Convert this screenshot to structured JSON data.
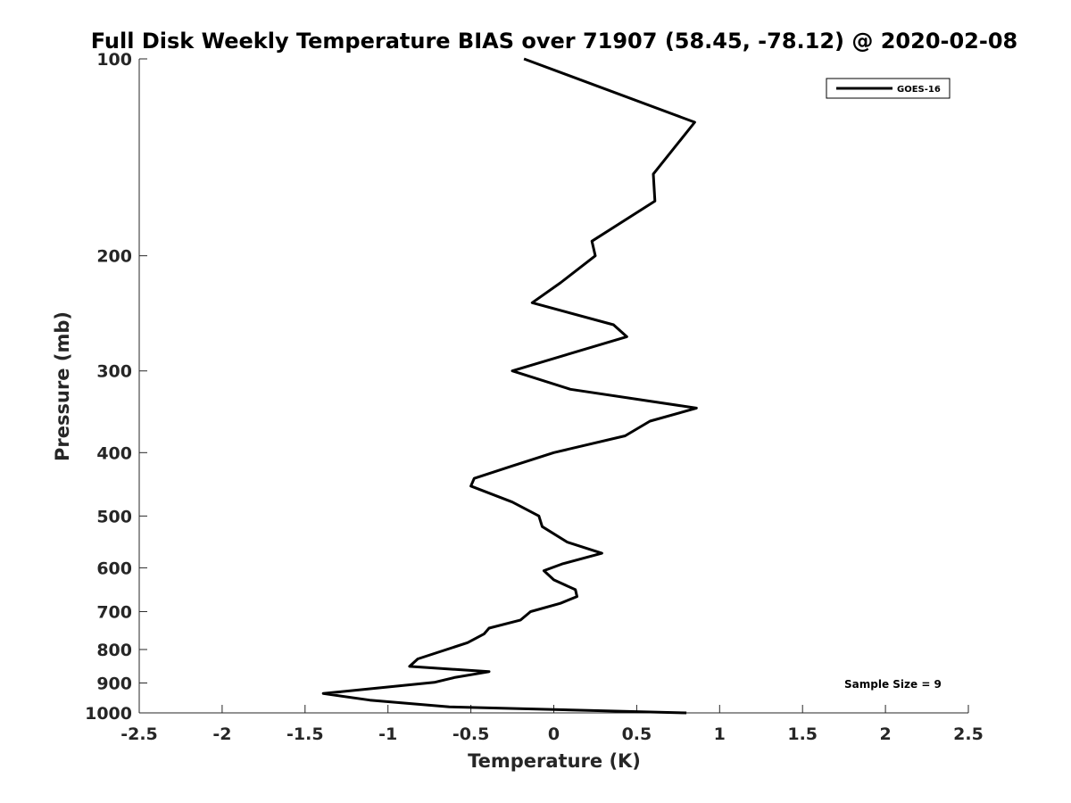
{
  "chart_data": {
    "type": "line",
    "title": "Full Disk Weekly Temperature BIAS over 71907 (58.45, -78.12) @ 2020-02-08",
    "xlabel": "Temperature (K)",
    "ylabel": "Pressure (mb)",
    "xlim": [
      -2.5,
      2.5
    ],
    "ylim": [
      100,
      1000
    ],
    "yscale": "log",
    "yreversed": true,
    "x_ticks": [
      "-2.5",
      "-2",
      "-1.5",
      "-1",
      "-0.5",
      "0",
      "0.5",
      "1",
      "1.5",
      "2",
      "2.5"
    ],
    "y_ticks": [
      "100",
      "200",
      "300",
      "400",
      "500",
      "600",
      "700",
      "800",
      "900",
      "1000"
    ],
    "grid": false,
    "legend": {
      "position": "top-right",
      "entries": [
        "GOES-16"
      ]
    },
    "annotation": "Sample Size = 9",
    "series": [
      {
        "name": "GOES-16",
        "color": "#000000",
        "points": [
          [
            -0.18,
            100
          ],
          [
            0.85,
            125
          ],
          [
            0.6,
            150
          ],
          [
            0.61,
            165
          ],
          [
            0.23,
            190
          ],
          [
            0.25,
            200
          ],
          [
            0.04,
            220
          ],
          [
            -0.13,
            236
          ],
          [
            0.36,
            255
          ],
          [
            0.44,
            266
          ],
          [
            -0.25,
            300
          ],
          [
            0.1,
            320
          ],
          [
            0.86,
            342
          ],
          [
            0.58,
            358
          ],
          [
            0.43,
            377
          ],
          [
            0.0,
            400
          ],
          [
            -0.26,
            420
          ],
          [
            -0.48,
            438
          ],
          [
            -0.5,
            450
          ],
          [
            -0.25,
            476
          ],
          [
            -0.09,
            500
          ],
          [
            -0.07,
            519
          ],
          [
            0.08,
            548
          ],
          [
            0.29,
            570
          ],
          [
            0.05,
            592
          ],
          [
            -0.06,
            606
          ],
          [
            0.0,
            626
          ],
          [
            0.13,
            648
          ],
          [
            0.14,
            664
          ],
          [
            0.04,
            680
          ],
          [
            -0.14,
            700
          ],
          [
            -0.2,
            721
          ],
          [
            -0.39,
            742
          ],
          [
            -0.42,
            757
          ],
          [
            -0.52,
            781
          ],
          [
            -0.82,
            827
          ],
          [
            -0.87,
            849
          ],
          [
            -0.39,
            865
          ],
          [
            -0.6,
            883
          ],
          [
            -0.72,
            898
          ],
          [
            -1.39,
            934
          ],
          [
            -1.11,
            956
          ],
          [
            -0.63,
            979
          ],
          [
            0.8,
            1000
          ]
        ]
      }
    ]
  }
}
